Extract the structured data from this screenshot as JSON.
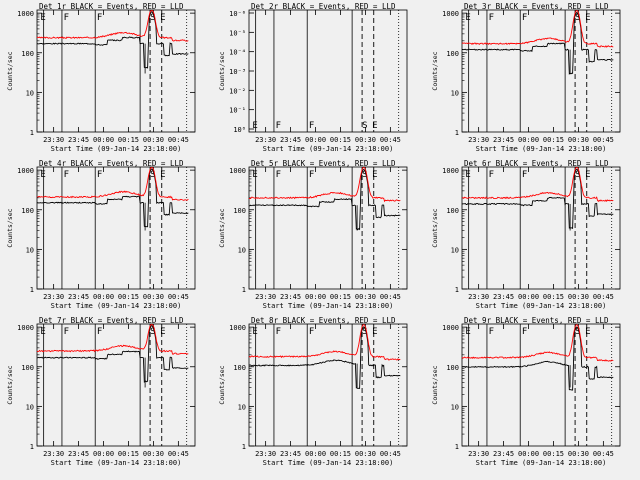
{
  "figure": {
    "background": "#f0f0f0",
    "red": "#ff0000",
    "black": "#000000"
  },
  "chart_data": {
    "type": "line",
    "x_tick_labels": [
      "23:30",
      "23:45",
      "00:00",
      "00:15",
      "00:30",
      "00:45"
    ],
    "x_tick_minutes": [
      -30,
      -15,
      0,
      15,
      30,
      45
    ],
    "xlim_minutes": [
      -40,
      55
    ],
    "xlabel": "Start Time (09-Jan-14 23:18:00)",
    "ylabel": "Counts/sec",
    "y_scale": "log",
    "ylim": [
      1,
      1200
    ],
    "y_tick_labels": [
      "1",
      "10",
      "100",
      "1000"
    ],
    "y_tick_values": [
      1,
      10,
      100,
      1000
    ],
    "solid_markers_minutes": [
      -36,
      -25,
      -5,
      22
    ],
    "dashed_markers_minutes": [
      28,
      35
    ],
    "marker_labels": [
      {
        "text": "E",
        "minute": -38
      },
      {
        "text": "F",
        "minute": -24
      },
      {
        "text": "F",
        "minute": -4
      },
      {
        "text": "S",
        "minute": 28
      },
      {
        "text": "E",
        "minute": 34
      }
    ],
    "panels": [
      {
        "title": "Det 1r BLACK = Events, RED = LLD",
        "black_base": 170,
        "red_base": 240,
        "flare_peak": 1000,
        "steps": true
      },
      {
        "title": "Det 2r BLACK = Events, RED = LLD",
        "empty": true,
        "y_tick_labels": [
          "10⁻⁶",
          "10⁻⁵",
          "10⁻⁴",
          "10⁻³",
          "10⁻²",
          "10⁻¹",
          "10⁰"
        ]
      },
      {
        "title": "Det 3r BLACK = Events, RED = LLD",
        "black_base": 120,
        "red_base": 170,
        "flare_peak": 1000,
        "steps": true
      },
      {
        "title": "Det 4r BLACK = Events, RED = LLD",
        "black_base": 150,
        "red_base": 210,
        "flare_peak": 1000,
        "steps": true
      },
      {
        "title": "Det 5r BLACK = Events, RED = LLD",
        "black_base": 130,
        "red_base": 200,
        "flare_peak": 1000,
        "steps": true
      },
      {
        "title": "Det 6r BLACK = Events, RED = LLD",
        "black_base": 140,
        "red_base": 200,
        "flare_peak": 1000,
        "steps": true
      },
      {
        "title": "Det 7r BLACK = Events, RED = LLD",
        "black_base": 170,
        "red_base": 250,
        "flare_peak": 1000,
        "steps": true
      },
      {
        "title": "Det 8r BLACK = Events, RED = LLD",
        "black_base": 120,
        "red_base": 180,
        "flare_peak": 1000,
        "steps": false
      },
      {
        "title": "Det 9r BLACK = Events, RED = LLD",
        "black_base": 110,
        "red_base": 170,
        "flare_peak": 1000,
        "steps": false
      }
    ]
  }
}
